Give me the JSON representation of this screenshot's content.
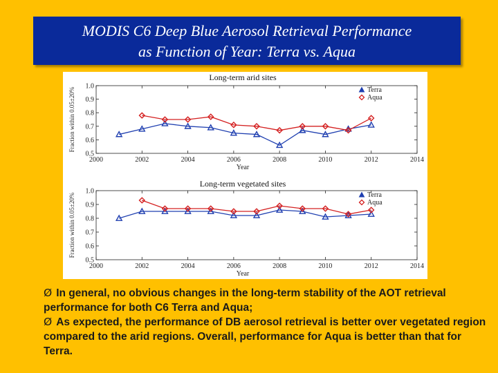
{
  "slide": {
    "title_line1": "MODIS C6 Deep Blue Aerosol Retrieval Performance",
    "title_line2": "as Function of Year: Terra vs. Aqua",
    "bullet_marker": "Ø",
    "bullets": [
      "In general, no obvious changes in the long-term stability of the AOT retrieval performance for both C6 Terra and Aqua;",
      "As expected, the performance of DB aerosol retrieval is better over vegetated region compared to the arid regions. Overall, performance for Aqua is better than that for Terra."
    ]
  },
  "colors": {
    "background": "#FFC000",
    "title_bg": "#0A2A9A",
    "terra": "#1F3FB0",
    "aqua": "#D42020"
  },
  "chart_data": [
    {
      "type": "line",
      "title": "Long-term arid sites",
      "xlabel": "Year",
      "ylabel": "Fraction within 0.05±20%",
      "xlim": [
        2000,
        2014
      ],
      "ylim": [
        0.5,
        1.0
      ],
      "xticks": [
        2000,
        2002,
        2004,
        2006,
        2008,
        2010,
        2012,
        2014
      ],
      "yticks": [
        "0.5",
        "0.6",
        "0.7",
        "0.8",
        "0.9",
        "1.0"
      ],
      "legend": "top-right",
      "series": [
        {
          "name": "Terra",
          "marker": "triangle",
          "x": [
            2001,
            2002,
            2003,
            2004,
            2005,
            2006,
            2007,
            2008,
            2009,
            2010,
            2011,
            2012
          ],
          "values": [
            0.64,
            0.68,
            0.72,
            0.7,
            0.69,
            0.65,
            0.64,
            0.56,
            0.67,
            0.64,
            0.68,
            0.71
          ]
        },
        {
          "name": "Aqua",
          "marker": "diamond",
          "x": [
            2002,
            2003,
            2004,
            2005,
            2006,
            2007,
            2008,
            2009,
            2010,
            2011,
            2012
          ],
          "values": [
            0.78,
            0.75,
            0.75,
            0.77,
            0.71,
            0.7,
            0.67,
            0.7,
            0.7,
            0.67,
            0.76
          ]
        }
      ]
    },
    {
      "type": "line",
      "title": "Long-term vegetated sites",
      "xlabel": "Year",
      "ylabel": "Fraction within 0.05±20%",
      "xlim": [
        2000,
        2014
      ],
      "ylim": [
        0.5,
        1.0
      ],
      "xticks": [
        2000,
        2002,
        2004,
        2006,
        2008,
        2010,
        2012,
        2014
      ],
      "yticks": [
        "0.5",
        "0.6",
        "0.7",
        "0.8",
        "0.9",
        "1.0"
      ],
      "legend": "top-right",
      "series": [
        {
          "name": "Terra",
          "marker": "triangle",
          "x": [
            2001,
            2002,
            2003,
            2004,
            2005,
            2006,
            2007,
            2008,
            2009,
            2010,
            2011,
            2012
          ],
          "values": [
            0.8,
            0.85,
            0.85,
            0.85,
            0.85,
            0.82,
            0.82,
            0.86,
            0.85,
            0.81,
            0.82,
            0.83
          ]
        },
        {
          "name": "Aqua",
          "marker": "diamond",
          "x": [
            2002,
            2003,
            2004,
            2005,
            2006,
            2007,
            2008,
            2009,
            2010,
            2011,
            2012
          ],
          "values": [
            0.93,
            0.87,
            0.87,
            0.87,
            0.85,
            0.85,
            0.89,
            0.87,
            0.87,
            0.83,
            0.86
          ]
        }
      ]
    }
  ]
}
